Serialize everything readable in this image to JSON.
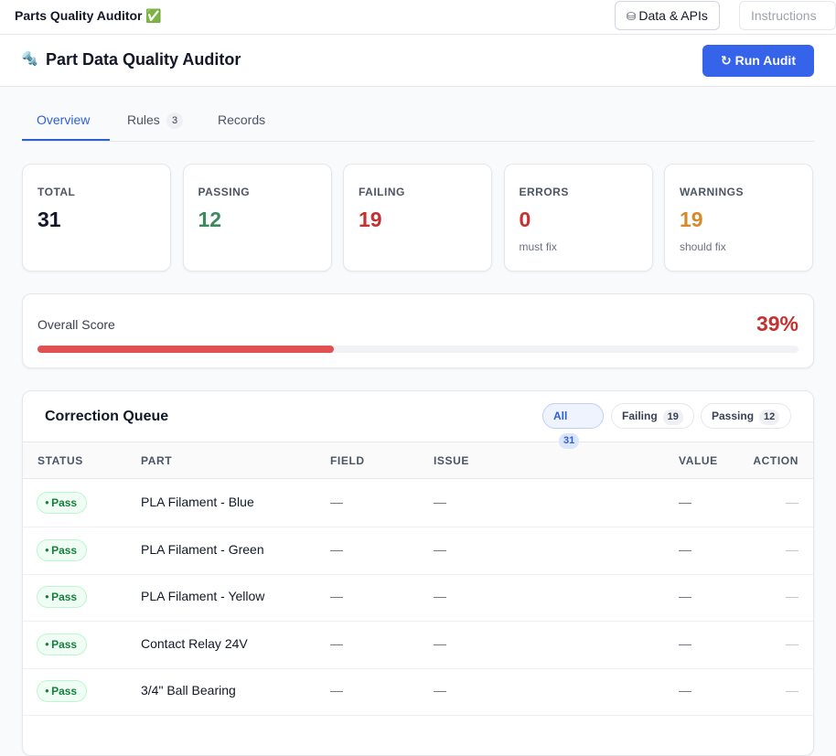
{
  "topbar": {
    "title": "Parts Quality Auditor ✅",
    "buttons": [
      "Data & APIs",
      "Instructions"
    ]
  },
  "header": {
    "icon": "🔩",
    "title": "Part Data Quality Auditor",
    "button": "Run Audit"
  },
  "tabs": [
    {
      "label": "Overview"
    },
    {
      "label": "Rules",
      "badge": "3"
    },
    {
      "label": "Records"
    }
  ],
  "stats": [
    {
      "label": "TOTAL",
      "value": "31"
    },
    {
      "label": "PASSING",
      "value": "12"
    },
    {
      "label": "FAILING",
      "value": "19"
    },
    {
      "label": "ERRORS",
      "value": "0",
      "note": "must fix"
    },
    {
      "label": "WARNINGS",
      "value": "19",
      "note": "should fix"
    }
  ],
  "score": {
    "label": "Overall Score",
    "value": {
      "value": 39,
      "label": "39%"
    }
  },
  "queue": {
    "title": "Correction Queue",
    "filters": [
      {
        "label": "All",
        "count": "31"
      },
      {
        "label": "Failing",
        "count": "19"
      },
      {
        "label": "Passing",
        "count": "12"
      }
    ],
    "columns": [
      "STATUS",
      "PART",
      "FIELD",
      "ISSUE",
      "VALUE",
      "ACTION"
    ],
    "rows": [
      [
        "Pass",
        "PLA Filament - Blue",
        "—",
        "—",
        "—",
        "—"
      ],
      [
        "Pass",
        "PLA Filament - Green",
        "—",
        "—",
        "—",
        "—"
      ],
      [
        "Pass",
        "PLA Filament - Yellow",
        "—",
        "—",
        "—",
        "—"
      ],
      [
        "Pass",
        "Contact Relay 24V",
        "—",
        "—",
        "—",
        "—"
      ],
      [
        "Pass",
        "3/4\" Ball Bearing",
        "—",
        "—",
        "—",
        "—"
      ]
    ]
  }
}
